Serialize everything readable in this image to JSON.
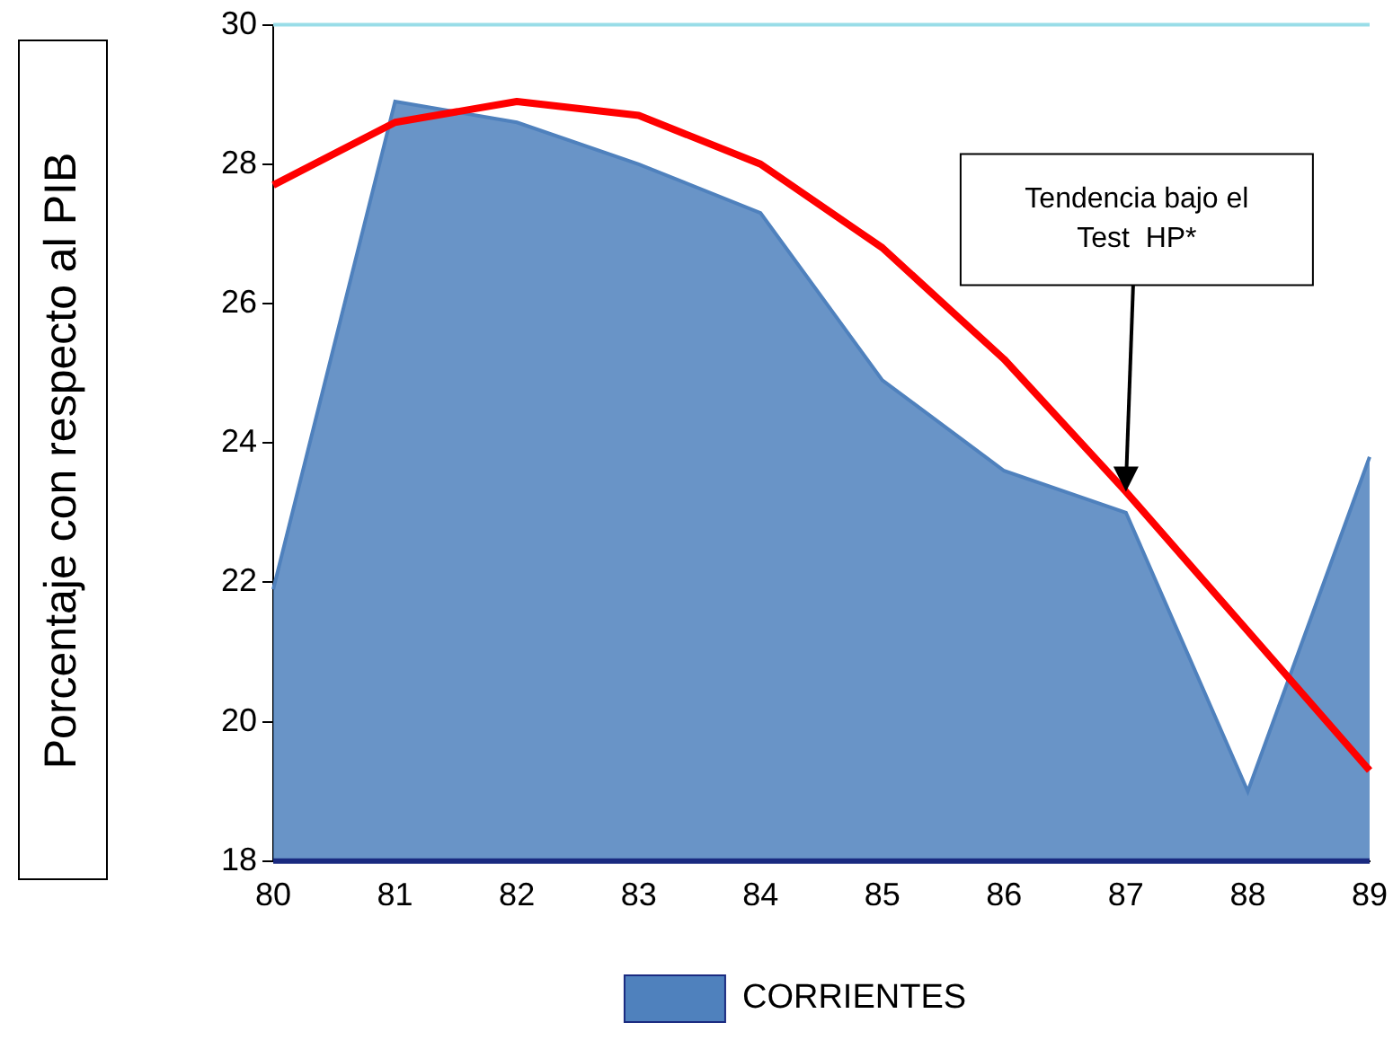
{
  "chart_data": {
    "type": "line",
    "ylabel": "Porcentaje con respecto al PIB",
    "categories": [
      "80",
      "81",
      "82",
      "83",
      "84",
      "85",
      "86",
      "87",
      "88",
      "89"
    ],
    "series": [
      {
        "name": "CORRIENTES",
        "type": "area",
        "color": "#4f81bd",
        "values": [
          21.9,
          28.9,
          28.6,
          28.0,
          27.3,
          24.9,
          23.6,
          23.0,
          19.0,
          23.8
        ]
      },
      {
        "color": "#ff0000",
        "values": [
          27.7,
          28.6,
          28.9,
          28.7,
          28.0,
          26.8,
          25.2,
          23.3,
          21.3,
          19.3
        ]
      }
    ],
    "ylim": [
      18,
      30
    ],
    "yticks": [
      18,
      20,
      22,
      24,
      26,
      28,
      30
    ],
    "ref_lines": [
      {
        "axis": "y",
        "value": 30,
        "color": "#99dde8"
      }
    ],
    "annotations": [
      {
        "text": "Tendencia bajo el Test  HP*",
        "x": "87",
        "y": 23.3
      }
    ],
    "grid": false,
    "legend": "bottom"
  }
}
